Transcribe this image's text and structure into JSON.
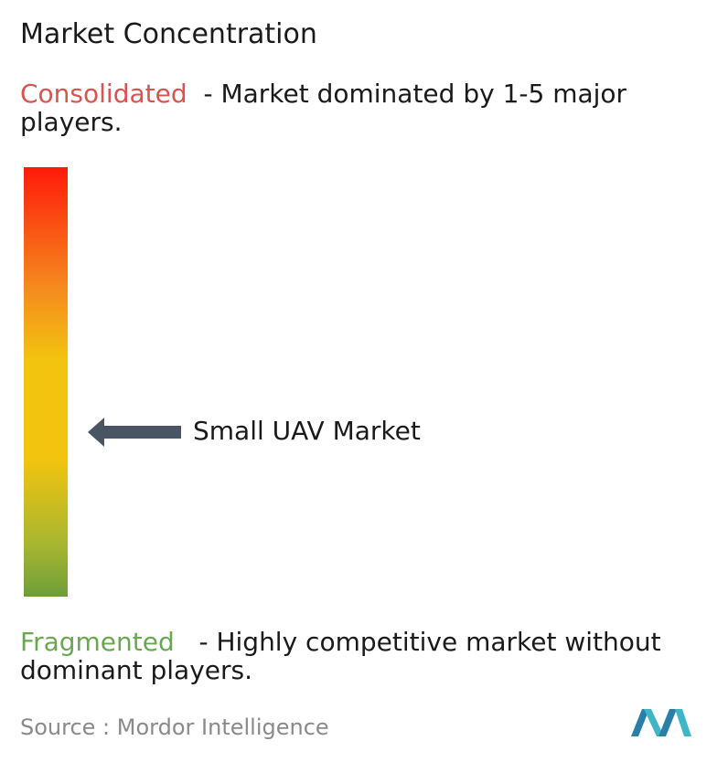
{
  "title": "Market Concentration",
  "consolidated": {
    "label": "Consolidated",
    "description": "- Market dominated by 1-5 major players."
  },
  "marker": {
    "label": "Small UAV Market"
  },
  "fragmented": {
    "label": "Fragmented",
    "description": "- Highly competitive market without dominant players."
  },
  "source": "Source :  Mordor Intelligence"
}
